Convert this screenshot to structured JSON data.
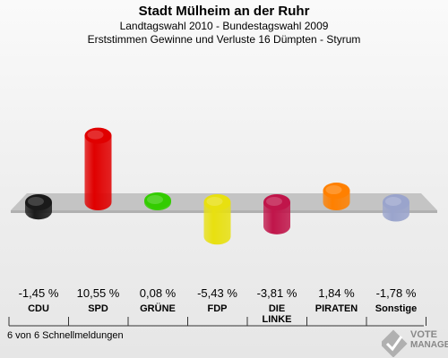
{
  "header": {
    "title": "Stadt Mülheim an der Ruhr",
    "subtitle1": "Landtagswahl 2010 - Bundestagswahl 2009",
    "subtitle2": "Erststimmen Gewinne und Verluste 16 Dümpten - Styrum"
  },
  "chart_data": {
    "type": "bar",
    "categories": [
      "CDU",
      "SPD",
      "GRÜNE",
      "FDP",
      "DIE LINKE",
      "PIRATEN",
      "Sonstige"
    ],
    "values": [
      -1.45,
      10.55,
      0.08,
      -5.43,
      -3.81,
      1.84,
      -1.78
    ],
    "value_labels": [
      "-1,45 %",
      "10,55 %",
      "0,08 %",
      "-5,43 %",
      "-3,81 %",
      "1,84 %",
      "-1,78 %"
    ],
    "colors": [
      "#1a1a1a",
      "#e00000",
      "#33cc00",
      "#e8e010",
      "#c0154a",
      "#ff8000",
      "#9aa4cc"
    ],
    "ylim": [
      -5.43,
      10.55
    ],
    "grid": false,
    "legend": "none"
  },
  "labels": {
    "party_names": [
      "CDU",
      "SPD",
      "GRÜNE",
      "FDP",
      "DIE\nLINKE",
      "PIRATEN",
      "Sonstige"
    ]
  },
  "footer": {
    "text": "6 von 6 Schnellmeldungen"
  },
  "logo": {
    "line1": "VOTE",
    "line2": "MANAGER"
  }
}
